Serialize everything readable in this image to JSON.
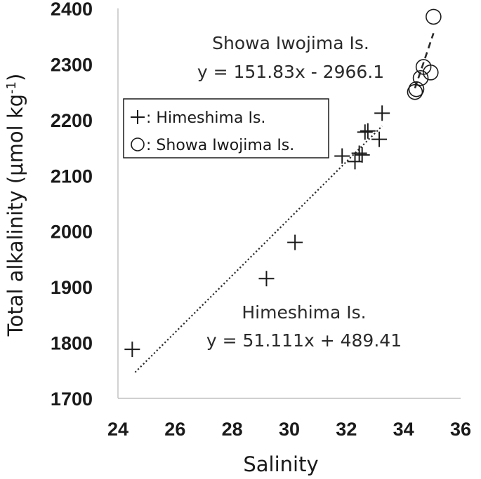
{
  "chart_data": {
    "type": "scatter",
    "xlabel": "Salinity",
    "ylabel": "Total alkalinity (μmol kg",
    "ylabel_sup": "-1",
    "ylabel_close": ")",
    "xlim": [
      24,
      36
    ],
    "ylim": [
      1700,
      2400
    ],
    "x_ticks": [
      24,
      26,
      28,
      30,
      32,
      34,
      36
    ],
    "y_ticks": [
      1700,
      1800,
      1900,
      2000,
      2100,
      2200,
      2300,
      2400
    ],
    "x_tick_labels": [
      "24",
      "26",
      "28",
      "30",
      "32",
      "34",
      "36"
    ],
    "y_tick_labels": [
      "1700",
      "1800",
      "1900",
      "2000",
      "2100",
      "2200",
      "2300",
      "2400"
    ],
    "grid": false,
    "legend_position": "upper-left",
    "series": [
      {
        "name": "Himeshima Is.",
        "legend_label": ": Himeshima Is.",
        "marker": "plus",
        "points": [
          {
            "x": 24.5,
            "y": 1788
          },
          {
            "x": 29.2,
            "y": 1915
          },
          {
            "x": 30.2,
            "y": 1980
          },
          {
            "x": 31.85,
            "y": 2135
          },
          {
            "x": 32.3,
            "y": 2125
          },
          {
            "x": 32.45,
            "y": 2140
          },
          {
            "x": 32.55,
            "y": 2137
          },
          {
            "x": 32.65,
            "y": 2178
          },
          {
            "x": 32.75,
            "y": 2180
          },
          {
            "x": 33.15,
            "y": 2165
          },
          {
            "x": 33.25,
            "y": 2212
          }
        ],
        "trend": {
          "slope": 51.111,
          "intercept": 489.41,
          "x_range": [
            24.6,
            33.25
          ],
          "style": "dotted"
        },
        "annotation_title": "Himeshima Is.",
        "equation": "y = 51.111x + 489.41"
      },
      {
        "name": "Showa Iwojima Is.",
        "legend_label": ": Showa Iwojima Is.",
        "marker": "circle",
        "points": [
          {
            "x": 34.4,
            "y": 2250
          },
          {
            "x": 34.45,
            "y": 2255
          },
          {
            "x": 34.6,
            "y": 2275
          },
          {
            "x": 34.7,
            "y": 2295
          },
          {
            "x": 34.95,
            "y": 2285
          },
          {
            "x": 35.05,
            "y": 2385
          }
        ],
        "trend": {
          "slope": 151.83,
          "intercept": -2966.1,
          "x_range": [
            34.4,
            35.05
          ],
          "style": "dashed"
        },
        "annotation_title": "Showa Iwojima Is.",
        "equation": "y = 151.83x - 2966.1"
      }
    ]
  }
}
